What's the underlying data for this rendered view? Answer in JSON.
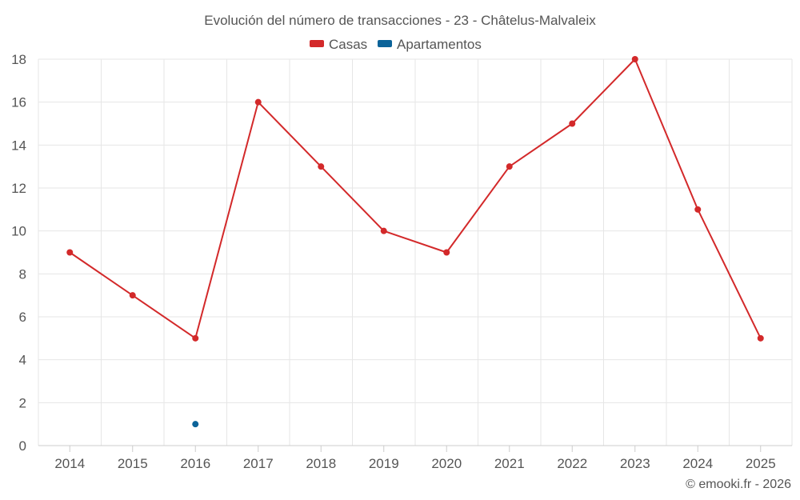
{
  "chart_data": {
    "type": "line",
    "title": "Evolución del número de transacciones - 23 - Châtelus-Malvaleix",
    "categories": [
      "2014",
      "2015",
      "2016",
      "2017",
      "2018",
      "2019",
      "2020",
      "2021",
      "2022",
      "2023",
      "2024",
      "2025"
    ],
    "series": [
      {
        "name": "Casas",
        "color": "#d3292a",
        "values": [
          9,
          7,
          5,
          16,
          13,
          10,
          9,
          13,
          15,
          18,
          11,
          5
        ]
      },
      {
        "name": "Apartamentos",
        "color": "#0b6399",
        "values": [
          null,
          null,
          1,
          null,
          null,
          null,
          null,
          null,
          null,
          null,
          null,
          null
        ]
      }
    ],
    "ylim": [
      0,
      18
    ],
    "yticks": [
      "0",
      "2",
      "4",
      "6",
      "8",
      "10",
      "12",
      "14",
      "16",
      "18"
    ],
    "xlabel": "",
    "ylabel": "",
    "grid": true,
    "legend_position": "top-center"
  },
  "credit": "© emooki.fr - 2026"
}
